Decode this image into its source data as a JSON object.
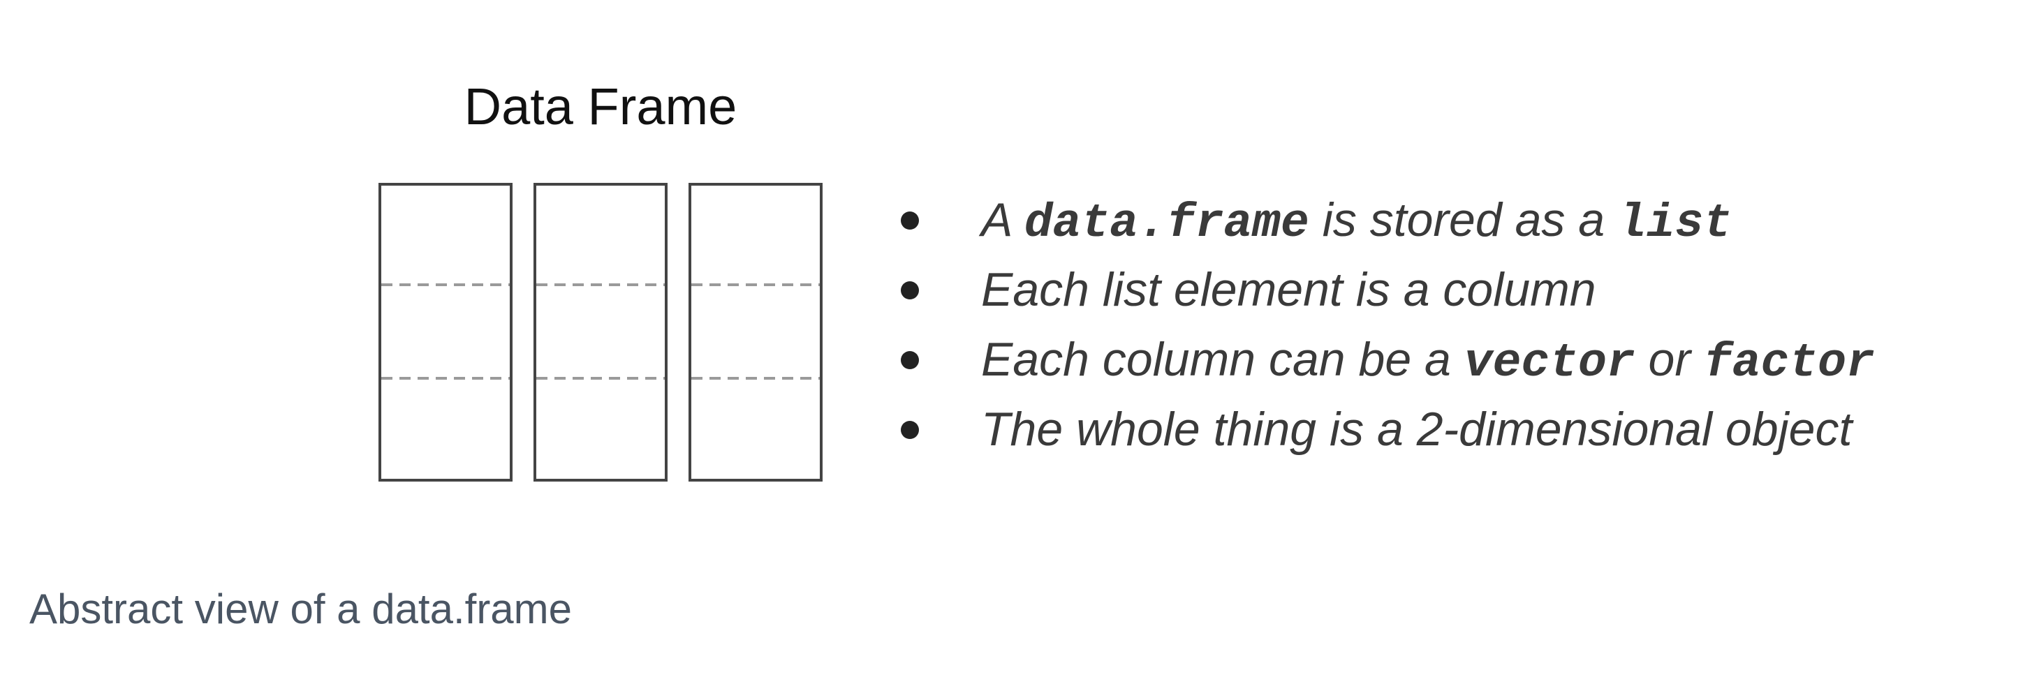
{
  "figure": {
    "title": "Data Frame",
    "columns": 3,
    "rows": 3,
    "bullets": [
      {
        "parts": [
          {
            "text": "A ",
            "code": false
          },
          {
            "text": "data.frame",
            "code": true
          },
          {
            "text": " is stored as a ",
            "code": false
          },
          {
            "text": "list",
            "code": true
          }
        ]
      },
      {
        "parts": [
          {
            "text": "Each list element is a column",
            "code": false
          }
        ]
      },
      {
        "parts": [
          {
            "text": "Each column can be a ",
            "code": false
          },
          {
            "text": "vector",
            "code": true
          },
          {
            "text": " or ",
            "code": false
          },
          {
            "text": "factor",
            "code": true
          }
        ]
      },
      {
        "parts": [
          {
            "text": "The whole thing is a 2-dimensional object",
            "code": false
          }
        ]
      }
    ]
  },
  "caption": "Abstract view of a data.frame",
  "colors": {
    "box_stroke": "#444444",
    "divider_stroke": "#9a9a9a"
  }
}
